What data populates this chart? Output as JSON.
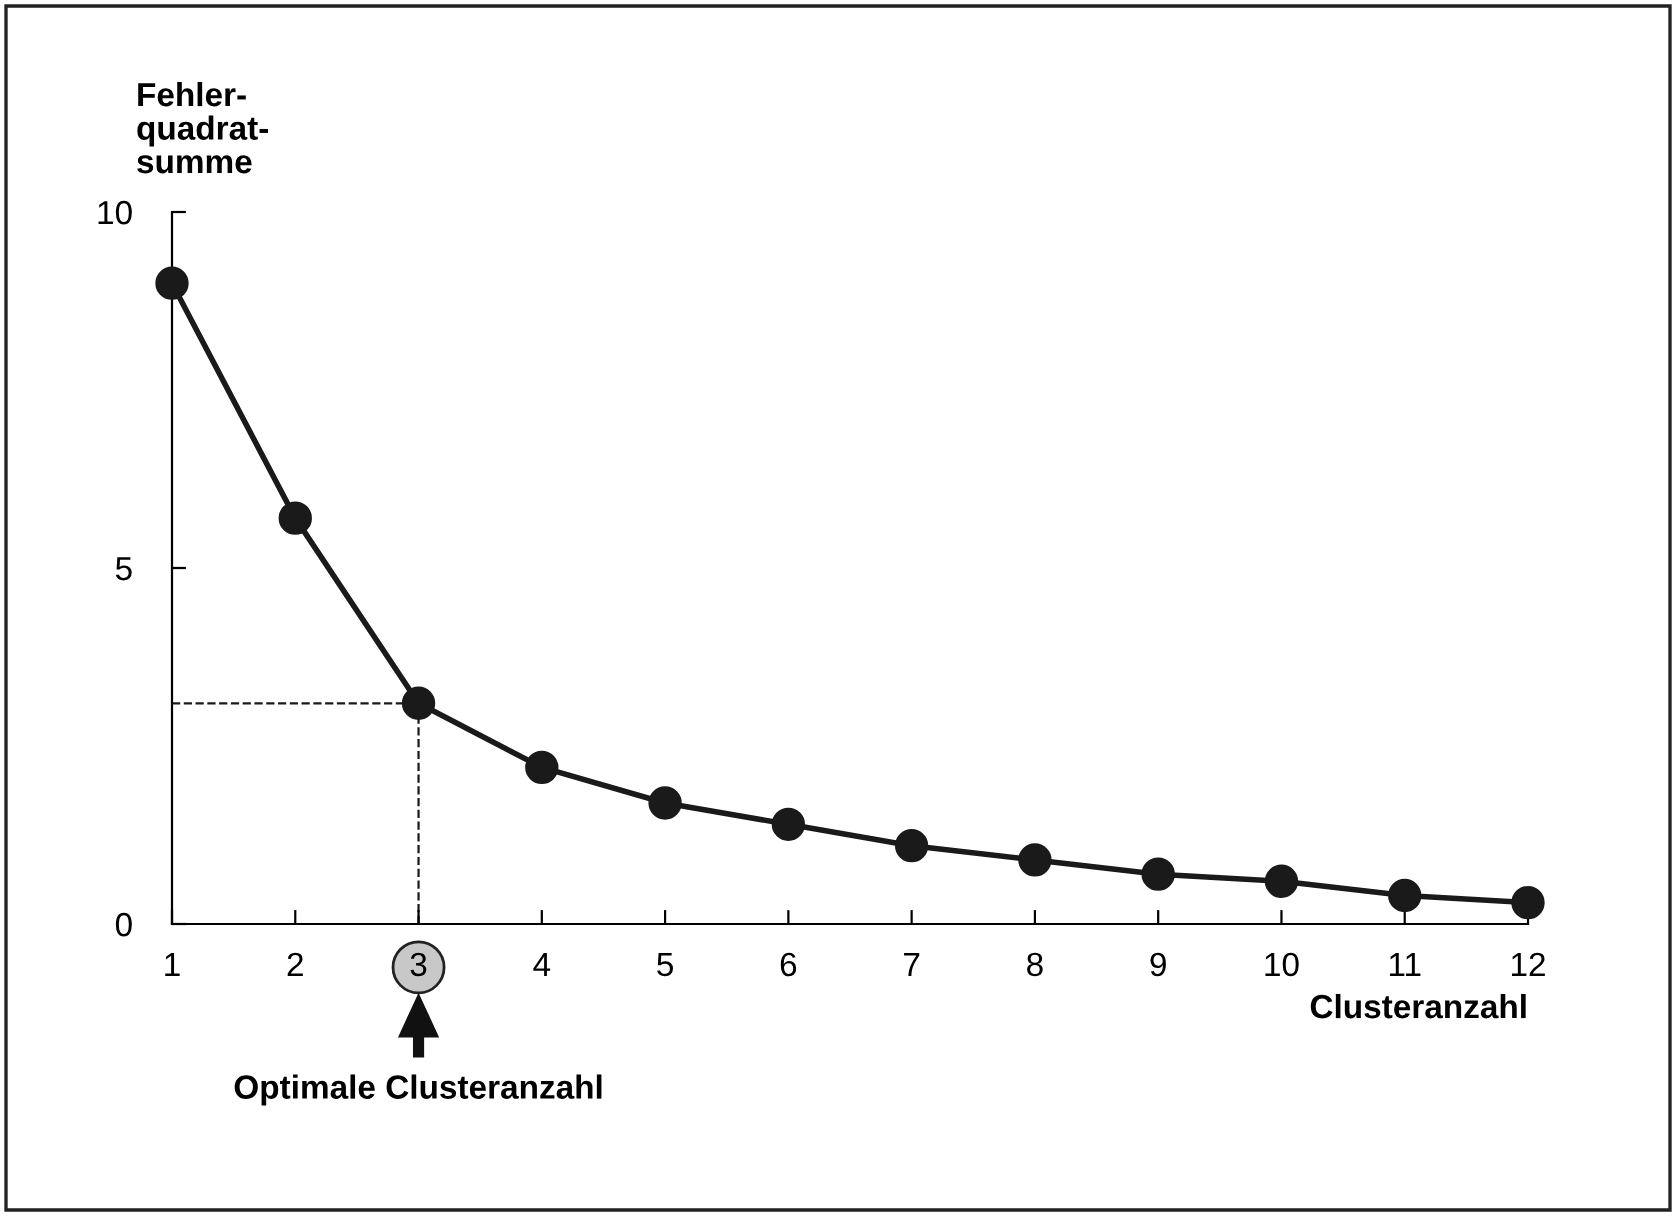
{
  "chart_data": {
    "type": "line",
    "ylabel": "Fehler-\nquadrat-\nsumme",
    "xlabel": "Clusteranzahl",
    "x": [
      1,
      2,
      3,
      4,
      5,
      6,
      7,
      8,
      9,
      10,
      11,
      12
    ],
    "series": [
      {
        "color": "#1a1a1a",
        "values": [
          9.0,
          5.7,
          3.1,
          2.2,
          1.7,
          1.4,
          1.1,
          0.9,
          0.7,
          0.6,
          0.4,
          0.3
        ]
      }
    ],
    "xlim": [
      1,
      12
    ],
    "ylim": [
      0,
      10
    ],
    "xticks": [
      1,
      2,
      3,
      4,
      5,
      6,
      7,
      8,
      9,
      10,
      11,
      12
    ],
    "yticks": [
      0,
      5,
      10
    ],
    "ref_lines": [
      {
        "axis": "x",
        "value": 3,
        "line_style": "dashed",
        "color": "#1a1a1a"
      },
      {
        "axis": "y",
        "value": 3.1,
        "line_style": "dashed",
        "color": "#1a1a1a"
      }
    ],
    "annotations": [
      "Optimale Clusteranzahl"
    ],
    "marker": "circle",
    "line_style": "solid",
    "grid": false
  }
}
